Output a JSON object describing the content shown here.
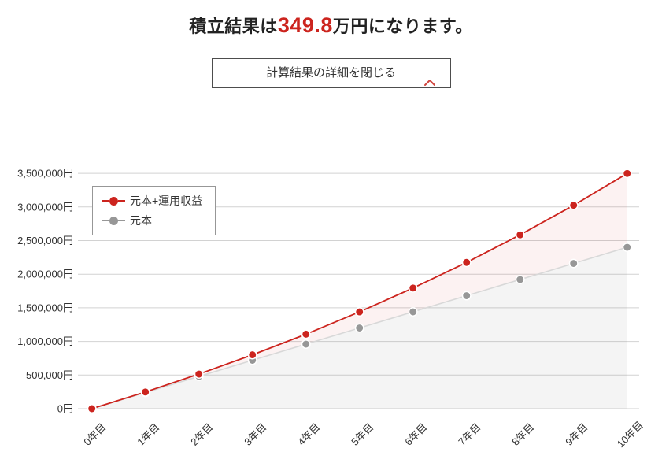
{
  "header": {
    "title_prefix": "積立結果は",
    "title_amount": "349.8",
    "title_suffix": "万円になります。"
  },
  "toggle": {
    "label": "計算結果の詳細を閉じる"
  },
  "colors": {
    "accent_red": "#cc241e",
    "principal_gray": "#979797",
    "principal_line_gray": "#d8d8d8",
    "gridline": "#d2d2d2",
    "returns_fill": "rgba(204,36,30,0.06)",
    "principal_fill": "rgba(151,151,151,0.10)"
  },
  "chart_data": {
    "type": "line",
    "categories": [
      "0年目",
      "1年目",
      "2年目",
      "3年目",
      "4年目",
      "5年目",
      "6年目",
      "7年目",
      "8年目",
      "9年目",
      "10年目"
    ],
    "series": [
      {
        "name": "元本+運用収益",
        "color": "#cc241e",
        "line_color": "#cc241e",
        "fill_color": "rgba(204,36,30,0.06)",
        "values": [
          0,
          248000,
          515000,
          801000,
          1108000,
          1439000,
          1794000,
          2175000,
          2585000,
          3025000,
          3498000
        ]
      },
      {
        "name": "元本",
        "color": "#979797",
        "line_color": "#d8d8d8",
        "fill_color": "rgba(151,151,151,0.10)",
        "values": [
          0,
          240000,
          480000,
          720000,
          960000,
          1200000,
          1440000,
          1680000,
          1920000,
          2160000,
          2400000
        ]
      }
    ],
    "yticks": [
      0,
      500000,
      1000000,
      1500000,
      2000000,
      2500000,
      3000000,
      3500000
    ],
    "ytick_labels": [
      "0円",
      "500,000円",
      "1,000,000円",
      "1,500,000円",
      "2,000,000円",
      "2,500,000円",
      "3,000,000円",
      "3,500,000円"
    ],
    "ylim": [
      0,
      3500000
    ],
    "grid": true,
    "legend_position": "top-left",
    "title": "積立結果は349.8万円になります。"
  }
}
